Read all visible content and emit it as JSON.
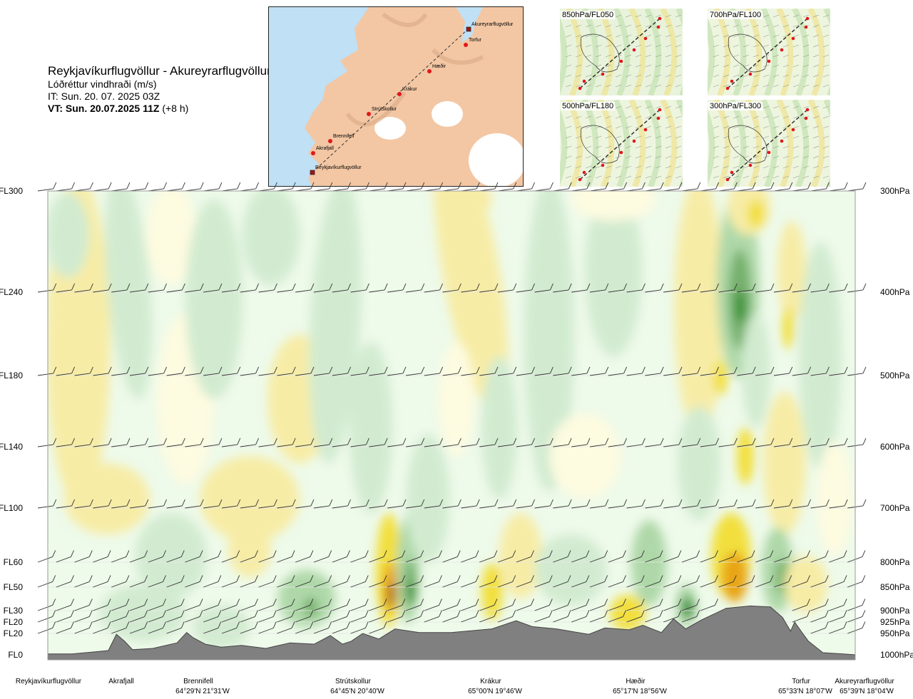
{
  "header": {
    "route_title": "Reykjavíkurflugvöllur - Akureyrarflugvöllur",
    "parameter": "Lóðréttur vindhraði (m/s)",
    "issue_time": "IT: Sun. 20. 07. 2025 03Z",
    "valid_time": "VT: Sun. 20.07.2025 11Z",
    "lead_time": "(+8 h)"
  },
  "route_map": {
    "stations": [
      "Akureyrarflugvöllur",
      "Torfur",
      "Hæðir",
      "Krákur",
      "Strútskollur",
      "Brennifell",
      "Akrafjall",
      "Reykjavíkurflugvöllur"
    ]
  },
  "level_maps": [
    {
      "label": "850hPa/FL050"
    },
    {
      "label": "700hPa/FL100"
    },
    {
      "label": "500hPa/FL180"
    },
    {
      "label": "300hPa/FL300"
    }
  ],
  "chart_data": {
    "type": "heatmap",
    "title": "Lóðréttur vindhraði (m/s)",
    "flight_levels": [
      "FL300",
      "FL240",
      "FL180",
      "FL140",
      "FL100",
      "FL60",
      "FL50",
      "FL30",
      "FL20",
      "FL20",
      "FL0"
    ],
    "pressure_levels": [
      "300hPa",
      "400hPa",
      "500hPa",
      "600hPa",
      "700hPa",
      "800hPa",
      "850hPa",
      "900hPa",
      "925hPa",
      "950hPa",
      "1000hPa"
    ],
    "pressure_values_hpa": [
      300,
      400,
      500,
      600,
      700,
      800,
      850,
      900,
      925,
      950,
      1000
    ],
    "route_fraction_range": [
      0,
      1
    ],
    "waypoints": [
      {
        "name": "Reykjavíkurflugvöllur",
        "coord": "",
        "route_fraction": 0.0
      },
      {
        "name": "Akrafjall",
        "coord": "",
        "route_fraction": 0.075
      },
      {
        "name": "Brennifell",
        "coord": "64°29'N 21°31'W",
        "route_fraction": 0.185
      },
      {
        "name": "Strútskollur",
        "coord": "64°45'N 20°40'W",
        "route_fraction": 0.376
      },
      {
        "name": "Krákur",
        "coord": "65°00'N 19°46'W",
        "route_fraction": 0.556
      },
      {
        "name": "Hæðir",
        "coord": "65°17'N 18°56'W",
        "route_fraction": 0.737
      },
      {
        "name": "Torfur",
        "coord": "65°33'N 18°07'W",
        "route_fraction": 0.932
      },
      {
        "name": "Akureyrarflugvöllur",
        "coord": "65°39'N 18°04'W",
        "route_fraction": 1.0
      }
    ],
    "terrain_pressure_hpa": [
      [
        0.0,
        998
      ],
      [
        0.03,
        998
      ],
      [
        0.075,
        990
      ],
      [
        0.085,
        952
      ],
      [
        0.095,
        968
      ],
      [
        0.105,
        988
      ],
      [
        0.13,
        985
      ],
      [
        0.16,
        972
      ],
      [
        0.172,
        948
      ],
      [
        0.18,
        960
      ],
      [
        0.195,
        975
      ],
      [
        0.215,
        982
      ],
      [
        0.24,
        978
      ],
      [
        0.27,
        985
      ],
      [
        0.3,
        972
      ],
      [
        0.33,
        975
      ],
      [
        0.35,
        955
      ],
      [
        0.365,
        975
      ],
      [
        0.376,
        968
      ],
      [
        0.39,
        950
      ],
      [
        0.41,
        963
      ],
      [
        0.43,
        940
      ],
      [
        0.46,
        948
      ],
      [
        0.5,
        948
      ],
      [
        0.55,
        940
      ],
      [
        0.58,
        922
      ],
      [
        0.6,
        935
      ],
      [
        0.63,
        940
      ],
      [
        0.67,
        952
      ],
      [
        0.69,
        938
      ],
      [
        0.72,
        942
      ],
      [
        0.737,
        932
      ],
      [
        0.76,
        948
      ],
      [
        0.775,
        918
      ],
      [
        0.79,
        940
      ],
      [
        0.81,
        920
      ],
      [
        0.84,
        895
      ],
      [
        0.87,
        890
      ],
      [
        0.895,
        892
      ],
      [
        0.91,
        915
      ],
      [
        0.92,
        945
      ],
      [
        0.925,
        925
      ],
      [
        0.935,
        950
      ],
      [
        0.942,
        968
      ],
      [
        0.96,
        995
      ],
      [
        0.985,
        998
      ],
      [
        1.0,
        1000
      ]
    ],
    "vertical_velocity_scale_ms": [
      -1.5,
      1.5
    ],
    "color_scale": [
      {
        "value": -1.5,
        "color": "#a0601a"
      },
      {
        "value": -0.8,
        "color": "#e8a516"
      },
      {
        "value": -0.4,
        "color": "#f2df3d"
      },
      {
        "value": -0.15,
        "color": "#f7eca6"
      },
      {
        "value": -0.05,
        "color": "#fdfbe0"
      },
      {
        "value": 0.05,
        "color": "#eefaea"
      },
      {
        "value": 0.15,
        "color": "#d2ebd0"
      },
      {
        "value": 0.4,
        "color": "#afd8a9"
      },
      {
        "value": 0.8,
        "color": "#74b06c"
      },
      {
        "value": 1.5,
        "color": "#1a8a1a"
      }
    ]
  },
  "colors": {
    "terrain": "#808080",
    "grid": "#e6e6e6",
    "sea": "#bfe0f5",
    "land": "#f3c7a4",
    "route_line": "#333333",
    "waypoint": "#e0181b"
  }
}
